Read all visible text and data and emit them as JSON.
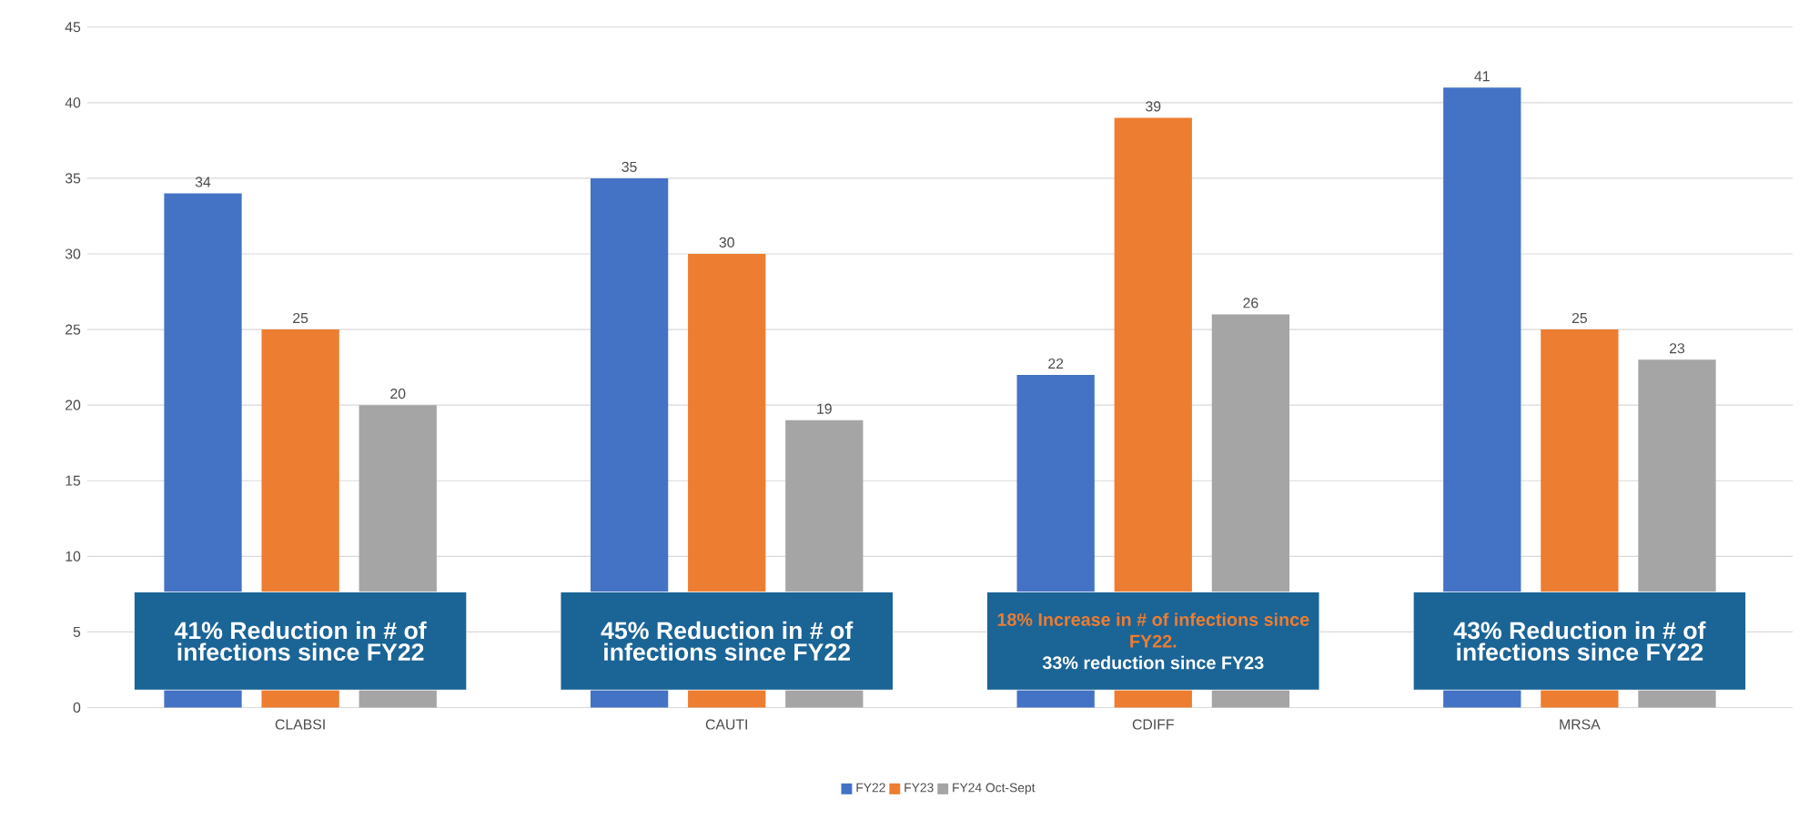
{
  "chart_data": {
    "type": "bar",
    "categories": [
      "CLABSI",
      "CAUTI",
      "CDIFF",
      "MRSA"
    ],
    "series": [
      {
        "name": "FY22",
        "color": "#4472c4",
        "values": [
          34,
          35,
          22,
          41
        ]
      },
      {
        "name": "FY23",
        "color": "#ed7d31",
        "values": [
          25,
          30,
          39,
          25
        ]
      },
      {
        "name": "FY24 Oct-Sept",
        "color": "#a5a5a5",
        "values": [
          20,
          19,
          26,
          23
        ]
      }
    ],
    "ylim": [
      0,
      45
    ],
    "yticks": [
      0,
      5,
      10,
      15,
      20,
      25,
      30,
      35,
      40,
      45
    ],
    "grid": "y",
    "legend": "bottom",
    "data_labels": true,
    "annotations": [
      "41% Reduction in # of infections since FY22",
      "45% Reduction in # of infections since FY22",
      "18% Increase in # of infections since FY22.",
      "33% reduction since FY23",
      "43% Reduction in # of infections since FY22"
    ]
  }
}
